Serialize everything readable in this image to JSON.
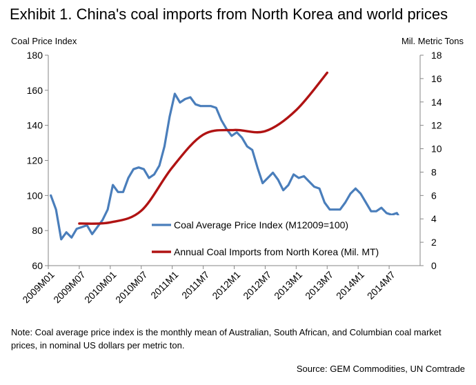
{
  "header": {
    "title": "Exhibit 1. China's coal imports from North Korea and world prices"
  },
  "note": "Note: Coal average price index is the monthly  mean of Australian, South African, and Columbian coal market prices, in nominal US dollars per metric ton.",
  "source": "Source:  GEM Commodities,  UN Comtrade",
  "colors": {
    "price_series": "#4a7ebb",
    "imports_series": "#b01313",
    "axis": "#868686"
  },
  "chart_data": {
    "type": "line",
    "left_axis_label": "Coal Price Index",
    "right_axis_label": "Mil. Metric Tons",
    "ylim_left": [
      60,
      180
    ],
    "ylim_right": [
      0,
      18
    ],
    "left_ticks": [
      "60",
      "80",
      "100",
      "120",
      "140",
      "160",
      "180"
    ],
    "right_ticks": [
      "0",
      "2",
      "4",
      "6",
      "8",
      "10",
      "12",
      "14",
      "16",
      "18"
    ],
    "x_tick_labels": [
      "2009M01",
      "2009M07",
      "2010M01",
      "2010M07",
      "2011M1",
      "2011M7",
      "2012M1",
      "2012M7",
      "2013M1",
      "2013M7",
      "2014M1",
      "2014M7"
    ],
    "series": [
      {
        "name": "Coal Average Price Index (M12009=100)",
        "axis": "left",
        "color": "#4a7ebb",
        "values": [
          100,
          92,
          75,
          79,
          76,
          81,
          82,
          83,
          78,
          82,
          86,
          92,
          106,
          102,
          102,
          110,
          115,
          116,
          115,
          110,
          112,
          117,
          128,
          145,
          158,
          153,
          155,
          156,
          152,
          151,
          151,
          151,
          150,
          143,
          138,
          134,
          136,
          133,
          128,
          126,
          116,
          107,
          110,
          113,
          109,
          103,
          106,
          112,
          110,
          111,
          108,
          105,
          104,
          96,
          92,
          92,
          92,
          96,
          101,
          104,
          101,
          96,
          91,
          91,
          93,
          90,
          89,
          90,
          85
        ]
      },
      {
        "name": "Annual Coal Imports from North Korea (Mil. MT)",
        "axis": "right",
        "color": "#b01313",
        "x": [
          5.5,
          11.5,
          17.5,
          23.5,
          29.5,
          35.5,
          41.5,
          47.5,
          53.5
        ],
        "values": [
          3.6,
          3.7,
          4.7,
          8.4,
          11.2,
          11.6,
          11.5,
          13.3,
          16.5
        ]
      }
    ],
    "legend_position": "center-bottom"
  }
}
